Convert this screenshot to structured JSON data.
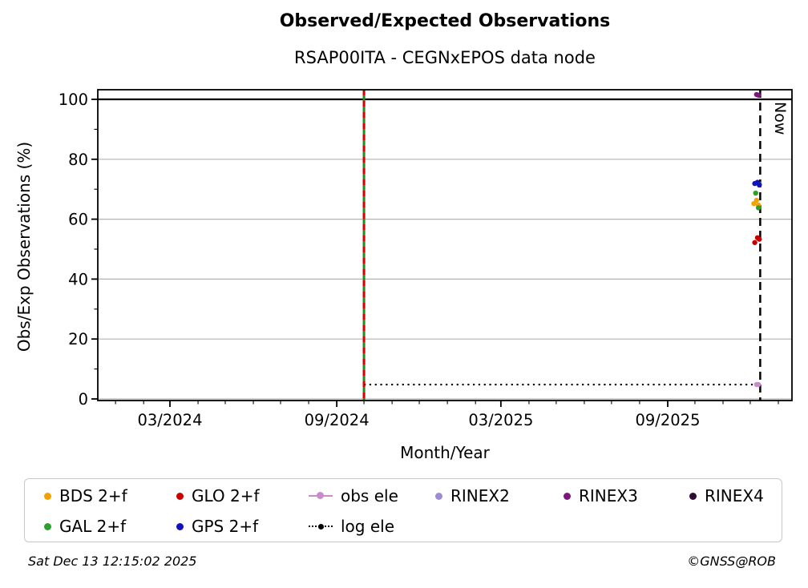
{
  "header": {
    "title": "Observed/Expected Observations",
    "subtitle": "RSAP00ITA - CEGNxEPOS data node"
  },
  "footer": {
    "timestamp": "Sat Dec 13 12:15:02 2025",
    "copyright": "©GNSS@ROB"
  },
  "chart_data": {
    "type": "scatter",
    "title": "Observed/Expected Observations",
    "subtitle": "RSAP00ITA - CEGNxEPOS data node",
    "xlabel": "Month/Year",
    "ylabel": "Obs/Exp Observations (%)",
    "now_label": "Now",
    "x_axis": {
      "major_ticks": [
        {
          "label": "03/2024",
          "date": "2024-03-01"
        },
        {
          "label": "09/2024",
          "date": "2024-09-01"
        },
        {
          "label": "03/2025",
          "date": "2025-03-01"
        },
        {
          "label": "09/2025",
          "date": "2025-09-01"
        }
      ],
      "minor_tick_unit": "month",
      "range_dates": [
        "2023-12-13",
        "2026-01-15"
      ]
    },
    "y_axis": {
      "major_ticks": [
        0,
        20,
        40,
        60,
        80,
        100
      ],
      "minor_step": 10,
      "range": [
        -0.5,
        103.2
      ],
      "grid_values": [
        0,
        20,
        40,
        60,
        80
      ],
      "grid_color": "#b3b3b3"
    },
    "series": [
      {
        "name": "BDS 2+f",
        "color": "#F2A200",
        "points": [
          {
            "date": "2025-12-05",
            "value": 65.2
          },
          {
            "date": "2025-12-08",
            "value": 66.3
          },
          {
            "date": "2025-12-10",
            "value": 64.7
          }
        ]
      },
      {
        "name": "GAL 2+f",
        "color": "#2CA02C",
        "points": [
          {
            "date": "2025-12-07",
            "value": 68.7
          },
          {
            "date": "2025-12-11",
            "value": 71.7
          },
          {
            "date": "2025-12-10",
            "value": 63.8
          }
        ]
      },
      {
        "name": "GLO 2+f",
        "color": "#C80000",
        "points": [
          {
            "date": "2025-12-06",
            "value": 52.2
          },
          {
            "date": "2025-12-09",
            "value": 53.8
          },
          {
            "date": "2025-12-11",
            "value": 53.3
          }
        ]
      },
      {
        "name": "GPS 2+f",
        "color": "#1111BE",
        "points": [
          {
            "date": "2025-12-06",
            "value": 71.9
          },
          {
            "date": "2025-12-09",
            "value": 72.3
          },
          {
            "date": "2025-12-11",
            "value": 71.4
          }
        ]
      },
      {
        "name": "obs ele",
        "color": "#C98BC9",
        "points": [
          {
            "date": "2025-12-08",
            "value": 4.8
          },
          {
            "date": "2025-12-10",
            "value": 4.8
          }
        ]
      },
      {
        "name": "RINEX2",
        "color": "#9C8CD0",
        "points": []
      },
      {
        "name": "RINEX3",
        "color": "#7D177D",
        "points": [
          {
            "date": "2025-12-08",
            "value": 101.6
          },
          {
            "date": "2025-12-10",
            "value": 101.4
          }
        ]
      },
      {
        "name": "RINEX4",
        "color": "#300B33",
        "points": []
      },
      {
        "name": "log ele",
        "color": "#000000",
        "points": []
      }
    ],
    "reference_lines": [
      {
        "id": "hline-100",
        "type": "hline",
        "value": 100,
        "style": "solid",
        "color": "#000000"
      },
      {
        "id": "log-ele-threshold",
        "type": "hline",
        "value": 4.8,
        "style": "dotted",
        "color": "#000000",
        "from_date": "2024-10-01",
        "to_date": "2025-12-12"
      },
      {
        "id": "data-start-line",
        "type": "vline",
        "date": "2024-10-01",
        "style": "dashed-overlay",
        "colors": [
          "#1E8C1E",
          "#DD0000"
        ]
      },
      {
        "id": "now-line",
        "type": "vline",
        "date": "2025-12-12",
        "style": "dashed",
        "color": "#000000",
        "label": "Now"
      }
    ]
  },
  "legend": {
    "items": [
      {
        "label": "BDS 2+f",
        "color": "#F2A200",
        "marker": "dot"
      },
      {
        "label": "GLO 2+f",
        "color": "#C80000",
        "marker": "dot"
      },
      {
        "label": "obs ele",
        "color": "#C98BC9",
        "marker": "line-dot"
      },
      {
        "label": "RINEX2",
        "color": "#9C8CD0",
        "marker": "dot"
      },
      {
        "label": "RINEX3",
        "color": "#7D177D",
        "marker": "dot"
      },
      {
        "label": "RINEX4",
        "color": "#300B33",
        "marker": "dot"
      },
      {
        "label": "GAL 2+f",
        "color": "#2CA02C",
        "marker": "dot"
      },
      {
        "label": "GPS 2+f",
        "color": "#1111BE",
        "marker": "dot"
      },
      {
        "label": "log ele",
        "color": "#000000",
        "marker": "dotted-line-dot"
      }
    ]
  }
}
